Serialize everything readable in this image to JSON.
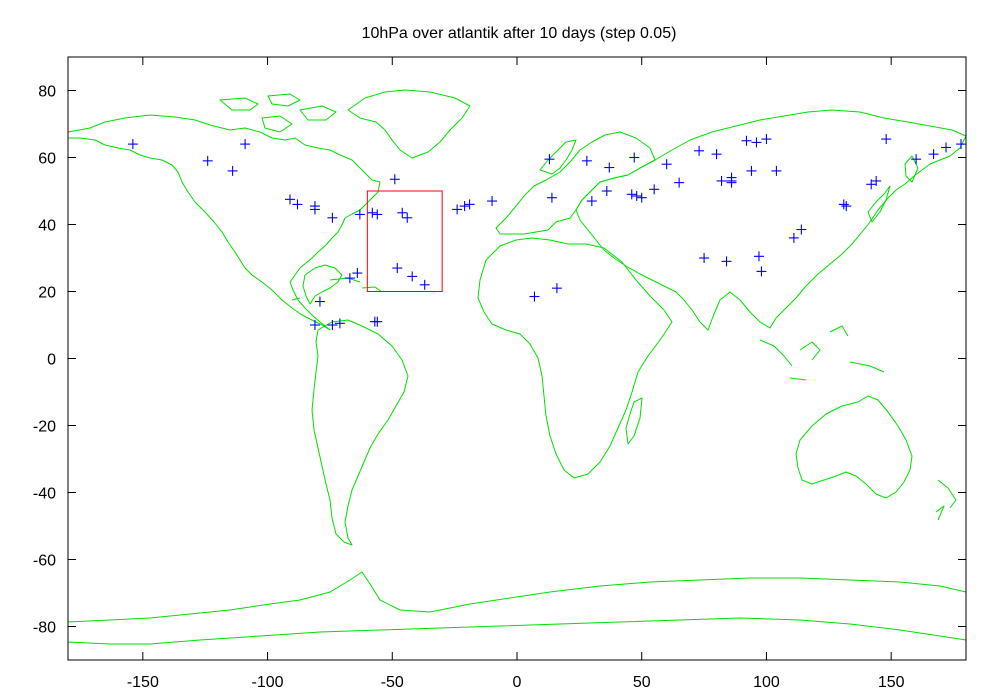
{
  "chart_data": {
    "type": "scatter",
    "title": "10hPa over atlantik after 10 days (step 0.05)",
    "xlabel": "",
    "ylabel": "",
    "xlim": [
      -180,
      180
    ],
    "ylim": [
      -90,
      90
    ],
    "x_ticks": [
      -150,
      -100,
      -50,
      0,
      50,
      100,
      150
    ],
    "y_ticks": [
      -80,
      -60,
      -40,
      -20,
      0,
      20,
      40,
      60,
      80
    ],
    "grid": false,
    "background_layer": "world coastlines",
    "colors": {
      "points": "#0000ff",
      "coastline": "#00e000",
      "region_box": "#ff0000",
      "frame": "#000000"
    },
    "region_box": {
      "lon_min": -60,
      "lon_max": -30,
      "lat_min": 20,
      "lat_max": 50
    },
    "series": [
      {
        "marker": "plus",
        "points": [
          [
            -154,
            64
          ],
          [
            -124,
            59
          ],
          [
            -114,
            56
          ],
          [
            -109,
            64
          ],
          [
            -91,
            47.5
          ],
          [
            -88,
            46
          ],
          [
            -81,
            45.5
          ],
          [
            -81,
            44.5
          ],
          [
            -74,
            42
          ],
          [
            -63,
            43
          ],
          [
            -58,
            43.5
          ],
          [
            -56,
            43
          ],
          [
            -49,
            53.5
          ],
          [
            -46,
            43.5
          ],
          [
            -44,
            42
          ],
          [
            -48,
            27
          ],
          [
            -42,
            24.5
          ],
          [
            -37,
            22
          ],
          [
            -67,
            24
          ],
          [
            -64,
            25.5
          ],
          [
            -79,
            17
          ],
          [
            -81,
            10
          ],
          [
            -74,
            10
          ],
          [
            -71,
            10.5
          ],
          [
            -57,
            11
          ],
          [
            -56,
            11
          ],
          [
            -24,
            44.5
          ],
          [
            -21,
            45.5
          ],
          [
            -19,
            46
          ],
          [
            -10,
            47
          ],
          [
            7,
            18.5
          ],
          [
            16,
            21
          ],
          [
            13,
            59.5
          ],
          [
            14,
            48
          ],
          [
            28,
            59
          ],
          [
            30,
            47
          ],
          [
            36,
            50
          ],
          [
            37,
            57
          ],
          [
            46,
            49
          ],
          [
            47,
            60
          ],
          [
            48,
            48.5
          ],
          [
            50,
            48
          ],
          [
            55,
            50.5
          ],
          [
            60,
            58
          ],
          [
            65,
            52.5
          ],
          [
            73,
            62
          ],
          [
            80,
            61
          ],
          [
            82,
            53
          ],
          [
            86,
            52.5
          ],
          [
            86,
            54
          ],
          [
            86,
            53
          ],
          [
            92,
            65
          ],
          [
            96,
            64.5
          ],
          [
            100,
            65.5
          ],
          [
            94,
            56
          ],
          [
            104,
            56
          ],
          [
            75,
            30
          ],
          [
            84,
            29
          ],
          [
            97,
            30.5
          ],
          [
            98,
            26
          ],
          [
            111,
            36
          ],
          [
            114,
            38.5
          ],
          [
            131,
            46
          ],
          [
            132,
            45.5
          ],
          [
            142,
            52
          ],
          [
            144,
            53
          ],
          [
            148,
            65.5
          ],
          [
            160,
            59.5
          ],
          [
            167,
            61
          ],
          [
            172,
            63
          ],
          [
            178,
            64
          ]
        ]
      }
    ]
  }
}
